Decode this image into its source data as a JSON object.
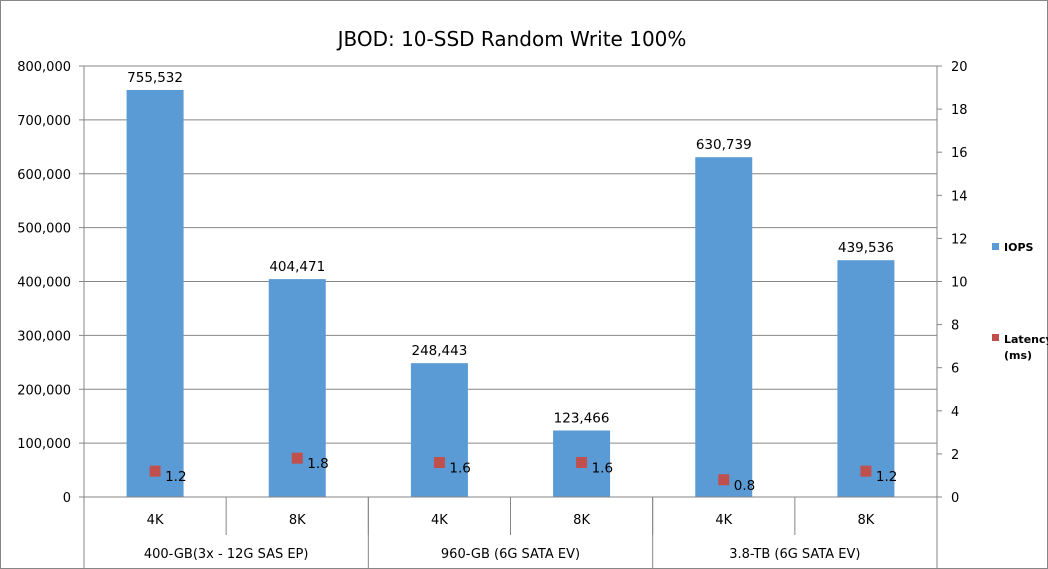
{
  "chart_data": {
    "type": "bar",
    "title": "JBOD: 10-SSD Random Write 100%",
    "xlabel": "",
    "ylabel": "",
    "categories": [
      "4K",
      "8K",
      "4K",
      "8K",
      "4K",
      "8K"
    ],
    "groups": [
      {
        "label": "400-GB(3x - 12G SAS EP)",
        "span": 2
      },
      {
        "label": "960-GB (6G SATA EV)",
        "span": 2
      },
      {
        "label": "3.8-TB (6G SATA EV)",
        "span": 2
      }
    ],
    "series": [
      {
        "name": "IOPS",
        "kind": "bar",
        "axis": "left",
        "color": "#5B9BD5",
        "values": [
          755532,
          404471,
          248443,
          123466,
          630739,
          439536
        ],
        "labels": [
          "755,532",
          "404,471",
          "248,443",
          "123,466",
          "630,739",
          "439,536"
        ]
      },
      {
        "name": "Latency (ms)",
        "legend_lines": [
          "Latency",
          "(ms)"
        ],
        "kind": "marker",
        "axis": "right",
        "color": "#C0504D",
        "values": [
          1.2,
          1.8,
          1.6,
          1.6,
          0.8,
          1.2
        ],
        "labels": [
          "1.2",
          "1.8",
          "1.6",
          "1.6",
          "0.8",
          "1.2"
        ]
      }
    ],
    "ylim_left": [
      0,
      800000
    ],
    "yticks_left": [
      "0",
      "100,000",
      "200,000",
      "300,000",
      "400,000",
      "500,000",
      "600,000",
      "700,000",
      "800,000"
    ],
    "ylim_right": [
      0,
      20
    ],
    "yticks_right": [
      "0",
      "2",
      "4",
      "6",
      "8",
      "10",
      "12",
      "14",
      "16",
      "18",
      "20"
    ],
    "grid": "horizontal",
    "legend_position": "right"
  }
}
